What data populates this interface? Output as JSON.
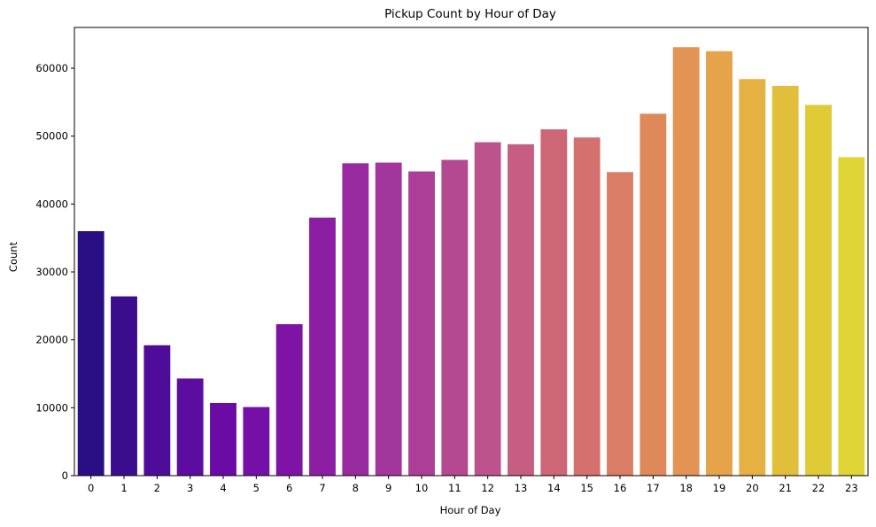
{
  "chart_data": {
    "type": "bar",
    "title": "Pickup Count by Hour of Day",
    "xlabel": "Hour of Day",
    "ylabel": "Count",
    "categories": [
      "0",
      "1",
      "2",
      "3",
      "4",
      "5",
      "6",
      "7",
      "8",
      "9",
      "10",
      "11",
      "12",
      "13",
      "14",
      "15",
      "16",
      "17",
      "18",
      "19",
      "20",
      "21",
      "22",
      "23"
    ],
    "values": [
      36000,
      26400,
      19200,
      14300,
      10700,
      10100,
      22300,
      38000,
      46000,
      46100,
      44800,
      46500,
      49100,
      48800,
      51000,
      49800,
      44700,
      53300,
      63100,
      62500,
      58400,
      57400,
      54600,
      46900
    ],
    "colors": [
      "#2a0f84",
      "#3c0c8f",
      "#4f0b99",
      "#5d0ca0",
      "#6a0ba5",
      "#7410a7",
      "#7f13a6",
      "#8c1ea3",
      "#992aa0",
      "#a3369d",
      "#ac3e97",
      "#b44992",
      "#bd538c",
      "#c65d83",
      "#cd6778",
      "#d4716f",
      "#da7d64",
      "#df895b",
      "#e39455",
      "#e5a34a",
      "#e5b142",
      "#e2bf3a",
      "#dfcb36",
      "#e0d537"
    ],
    "ylim": [
      0,
      66000
    ],
    "yticks": [
      0,
      10000,
      20000,
      30000,
      40000,
      50000,
      60000
    ],
    "grid": false,
    "legend": "none"
  }
}
